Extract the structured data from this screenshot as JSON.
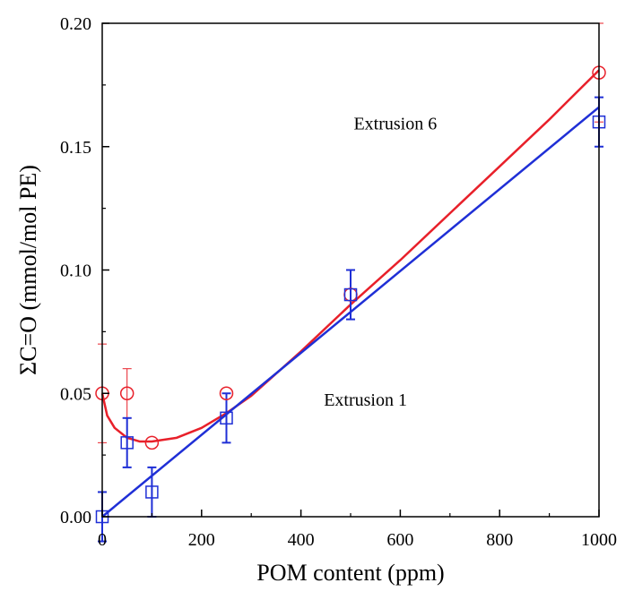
{
  "chart_data": {
    "type": "scatter",
    "xlabel": "POM content (ppm)",
    "ylabel": "ΣC=O (mmol/mol PE)",
    "xlim": [
      0,
      1000
    ],
    "ylim": [
      0,
      0.2
    ],
    "x_ticks": [
      0,
      200,
      400,
      600,
      800,
      1000
    ],
    "y_ticks": [
      0.0,
      0.05,
      0.1,
      0.15,
      0.2
    ],
    "x_tick_labels": [
      "0",
      "200",
      "400",
      "600",
      "800",
      "1000"
    ],
    "y_tick_labels": [
      "0.00",
      "0.05",
      "0.10",
      "0.15",
      "0.20"
    ],
    "grid": false,
    "series": [
      {
        "name": "Extrusion 6",
        "color": "#e8202a",
        "marker": "circle",
        "x": [
          0,
          50,
          100,
          250,
          500,
          1000
        ],
        "y": [
          0.05,
          0.05,
          0.03,
          0.05,
          0.09,
          0.18
        ],
        "err": [
          0.02,
          0.01,
          0.0,
          0.0,
          0.01,
          0.02
        ],
        "fit": {
          "x": [
            0,
            10,
            25,
            50,
            75,
            100,
            150,
            200,
            250,
            300,
            400,
            500,
            600,
            700,
            800,
            900,
            1000
          ],
          "y": [
            0.05,
            0.041,
            0.036,
            0.032,
            0.0305,
            0.0305,
            0.032,
            0.036,
            0.042,
            0.049,
            0.067,
            0.086,
            0.104,
            0.123,
            0.142,
            0.161,
            0.181
          ]
        }
      },
      {
        "name": "Extrusion 1",
        "color": "#1f2fd6",
        "marker": "square",
        "x": [
          0,
          50,
          100,
          250,
          500,
          1000
        ],
        "y": [
          0.0,
          0.03,
          0.01,
          0.04,
          0.09,
          0.16
        ],
        "err": [
          0.01,
          0.01,
          0.01,
          0.01,
          0.01,
          0.01
        ],
        "fit": {
          "x": [
            0,
            1000
          ],
          "y": [
            0.0,
            0.166
          ]
        }
      }
    ],
    "annotations": [
      {
        "text": "Extrusion 6",
        "x": 590,
        "y": 0.157
      },
      {
        "text": "Extrusion 1",
        "x": 530,
        "y": 0.045
      }
    ]
  }
}
